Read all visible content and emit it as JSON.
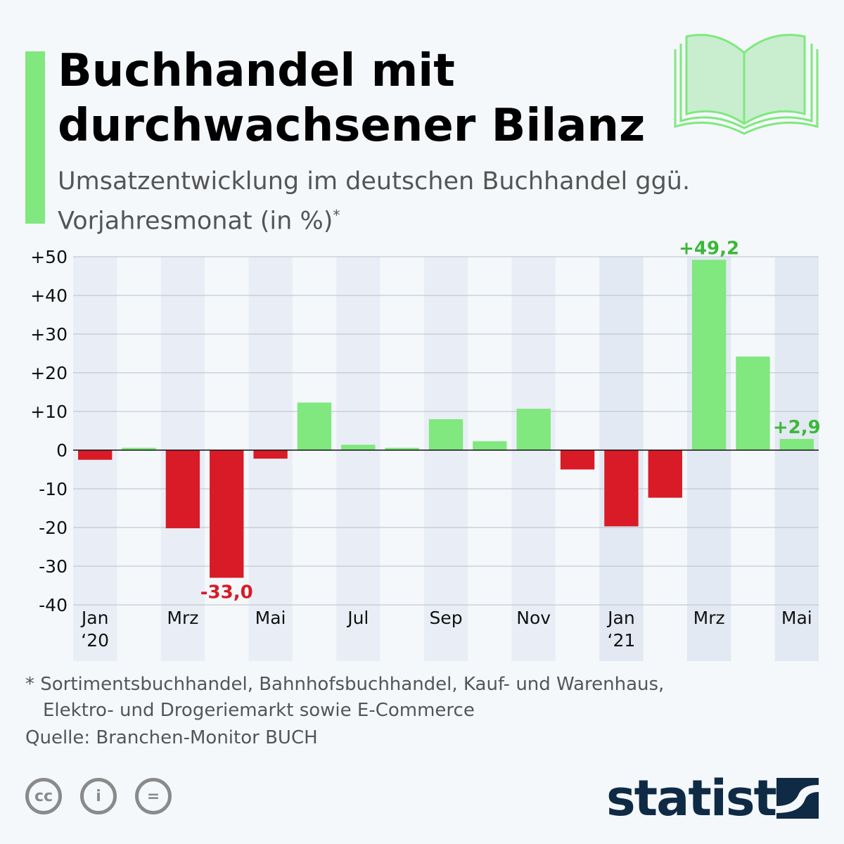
{
  "title": "Buchhandel mit durchwachsener Bilanz",
  "subtitle": "Umsatzentwicklung im deutschen Buchhandel ggü. Vorjahresmonat (in %)",
  "subtitle_marker": "*",
  "footnote_line1": "* Sortimentsbuchhandel, Bahnhofsbuchhandel, Kauf- und Warenhaus,",
  "footnote_line2": "Elektro- und Drogeriemarkt sowie E-Commerce",
  "source": "Quelle: Branchen-Monitor BUCH",
  "brand": "statista",
  "license_icons": [
    "cc-icon",
    "attribution-icon",
    "no-derivatives-icon"
  ],
  "colors": {
    "positive": "#80e87e",
    "negative": "#d81b26",
    "positive_label": "#3cb83a",
    "negative_label": "#d81b26",
    "accent": "#80e87e"
  },
  "chart_data": {
    "type": "bar",
    "title": "Buchhandel mit durchwachsener Bilanz",
    "xlabel": "",
    "ylabel": "",
    "ylim": [
      -40,
      50
    ],
    "yticks": [
      "+50",
      "+40",
      "+30",
      "+20",
      "+10",
      "0",
      "-10",
      "-20",
      "-30",
      "-40"
    ],
    "ytick_values": [
      50,
      40,
      30,
      20,
      10,
      0,
      -10,
      -20,
      -30,
      -40
    ],
    "categories": [
      "Jan 20",
      "Feb 20",
      "Mrz 20",
      "Apr 20",
      "Mai 20",
      "Jun 20",
      "Jul 20",
      "Aug 20",
      "Sep 20",
      "Okt 20",
      "Nov 20",
      "Dez 20",
      "Jan 21",
      "Feb 21",
      "Mrz 21",
      "Apr 21",
      "Mai 21"
    ],
    "values": [
      -2.5,
      0.6,
      -20.2,
      -33.0,
      -2.2,
      12.3,
      1.4,
      0.6,
      8.0,
      2.3,
      10.7,
      -5.0,
      -19.7,
      -12.3,
      49.2,
      24.2,
      2.9
    ],
    "xtick_labels": [
      {
        "index": 0,
        "line1": "Jan",
        "line2": "‘20"
      },
      {
        "index": 2,
        "line1": "Mrz",
        "line2": ""
      },
      {
        "index": 4,
        "line1": "Mai",
        "line2": ""
      },
      {
        "index": 6,
        "line1": "Jul",
        "line2": ""
      },
      {
        "index": 8,
        "line1": "Sep",
        "line2": ""
      },
      {
        "index": 10,
        "line1": "Nov",
        "line2": ""
      },
      {
        "index": 12,
        "line1": "Jan",
        "line2": "‘21"
      },
      {
        "index": 14,
        "line1": "Mrz",
        "line2": ""
      },
      {
        "index": 16,
        "line1": "Mai",
        "line2": ""
      }
    ],
    "annotations": [
      {
        "index": 3,
        "text": "-33,0"
      },
      {
        "index": 14,
        "text": "+49,2"
      },
      {
        "index": 16,
        "text": "+2,9"
      }
    ],
    "grid": true
  }
}
